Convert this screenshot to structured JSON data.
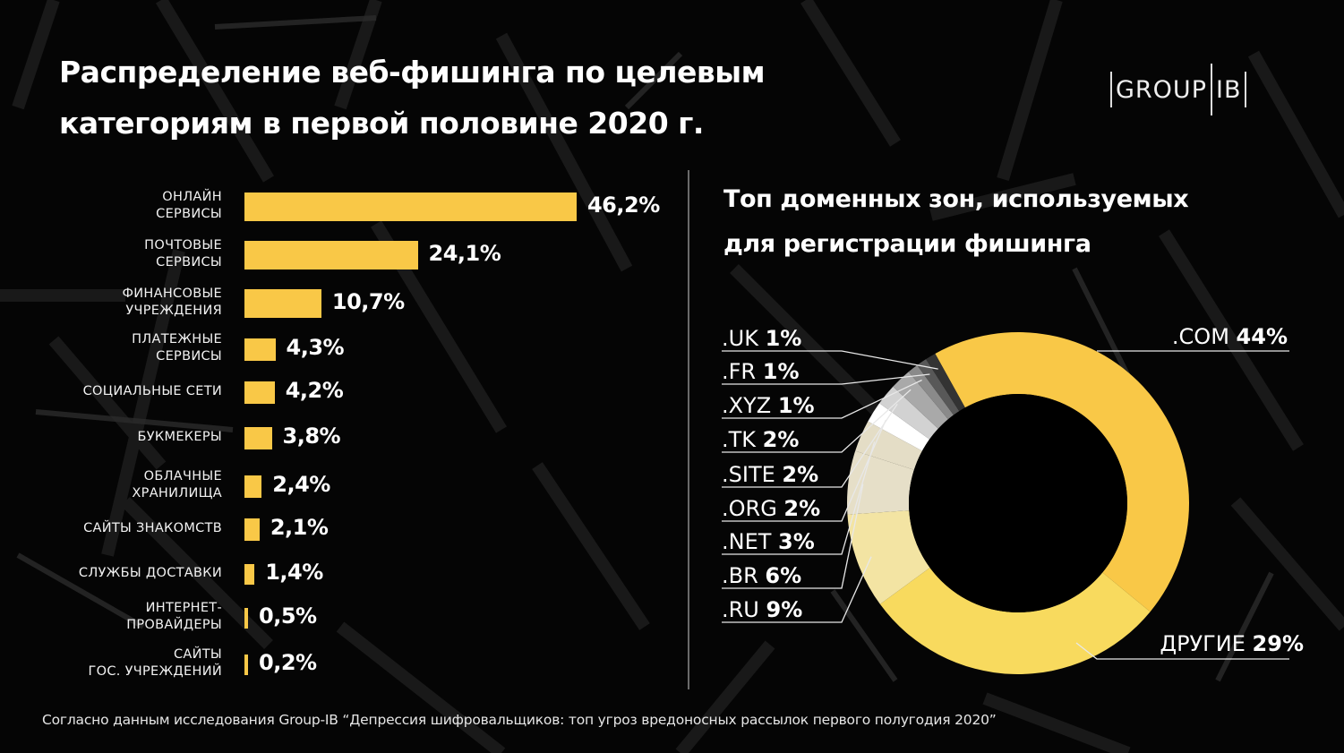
{
  "title_line1": "Распределение веб-фишинга по целевым",
  "title_line2": "категориям в первой половине 2020 г.",
  "logo": {
    "left": "GROUP",
    "right": "IB"
  },
  "subtitle_line1": "Топ доменных зон, используемых",
  "subtitle_line2": "для регистрации фишинга",
  "footer": "Согласно данным исследования Group-IB “Депрессия шифровальщиков: топ угроз вредоносных рассылок первого полугодия 2020”",
  "colors": {
    "accent": "#f9c847",
    "background": "#050505",
    "text": "#ffffff"
  },
  "chart_data": [
    {
      "type": "bar",
      "orientation": "horizontal",
      "title": "Распределение веб-фишинга по целевым категориям в первой половине 2020 г.",
      "categories": [
        "ОНЛАЙН\nСЕРВИСЫ",
        "ПОЧТОВЫЕ\nСЕРВИСЫ",
        "ФИНАНСОВЫЕ\nУЧРЕЖДЕНИЯ",
        "ПЛАТЕЖНЫЕ\nСЕРВИСЫ",
        "СОЦИАЛЬНЫЕ СЕТИ",
        "БУКМЕКЕРЫ",
        "ОБЛАЧНЫЕ\nХРАНИЛИЩА",
        "САЙТЫ ЗНАКОМСТВ",
        "СЛУЖБЫ ДОСТАВКИ",
        "ИНТЕРНЕТ-\nПРОВАЙДЕРЫ",
        "САЙТЫ\nГОС. УЧРЕЖДЕНИЙ"
      ],
      "values": [
        46.2,
        24.1,
        10.7,
        4.3,
        4.2,
        3.8,
        2.4,
        2.1,
        1.4,
        0.5,
        0.2
      ],
      "value_labels": [
        "46,2%",
        "24,1%",
        "10,7%",
        "4,3%",
        "4,2%",
        "3,8%",
        "2,4%",
        "2,1%",
        "1,4%",
        "0,5%",
        "0,2%"
      ],
      "unit": "%",
      "color": "#f9c847",
      "xlabel": "",
      "ylabel": "",
      "grid": false
    },
    {
      "type": "pie",
      "variant": "donut",
      "title": "Топ доменных зон, используемых для регистрации фишинга",
      "slices": [
        {
          "label": ".COM",
          "value": 44,
          "value_label": "44%",
          "color": "#f9c847"
        },
        {
          "label": "ДРУГИЕ",
          "value": 29,
          "value_label": "29%",
          "color": "#f8da5e"
        },
        {
          "label": ".RU",
          "value": 9,
          "value_label": "9%",
          "color": "#f3e4a3"
        },
        {
          "label": ".BR",
          "value": 6,
          "value_label": "6%",
          "color": "#e6dfc8"
        },
        {
          "label": ".NET",
          "value": 3,
          "value_label": "3%",
          "color": "#e4ddc6"
        },
        {
          "label": ".ORG",
          "value": 2,
          "value_label": "2%",
          "color": "#ffffff"
        },
        {
          "label": ".SITE",
          "value": 2,
          "value_label": "2%",
          "color": "#d2d2d2"
        },
        {
          "label": ".TK",
          "value": 2,
          "value_label": "2%",
          "color": "#a9a9a9"
        },
        {
          "label": ".XYZ",
          "value": 1,
          "value_label": "1%",
          "color": "#8a8a8a"
        },
        {
          "label": ".FR",
          "value": 1,
          "value_label": "1%",
          "color": "#585858"
        },
        {
          "label": ".UK",
          "value": 1,
          "value_label": "1%",
          "color": "#333333"
        }
      ],
      "left_legend_order": [
        ".UK",
        ".FR",
        ".XYZ",
        ".TK",
        ".SITE",
        ".ORG",
        ".NET",
        ".BR",
        ".RU"
      ],
      "legend": "left-and-right"
    }
  ]
}
